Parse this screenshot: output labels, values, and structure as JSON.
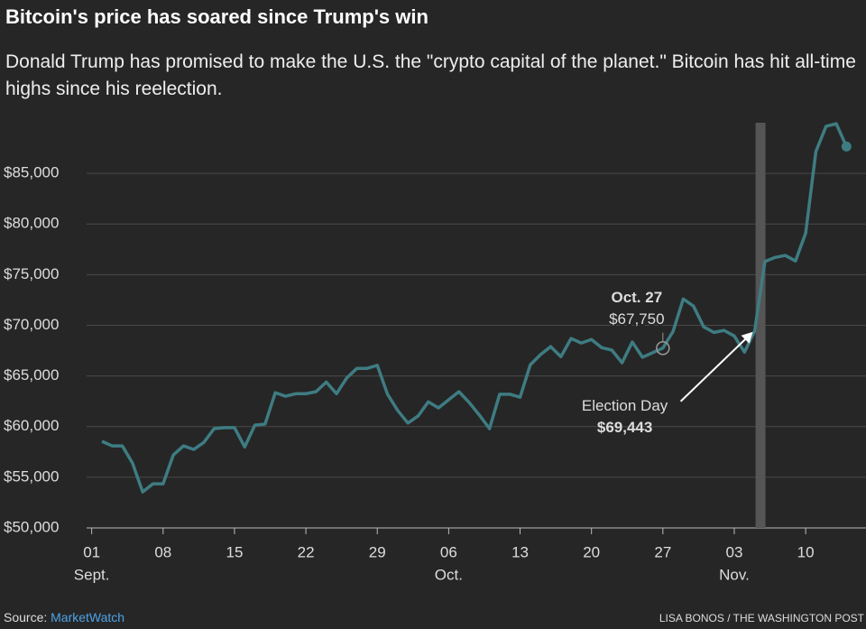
{
  "chart_data": {
    "type": "line",
    "title": "Bitcoin's price has soared since Trump's win",
    "subtitle": "Donald Trump has promised to make the U.S. the \"crypto capital of the planet.\" Bitcoin has hit all-time highs since his reelection.",
    "x": [
      2,
      3,
      4,
      5,
      6,
      7,
      8,
      9,
      10,
      11,
      12,
      13,
      14,
      15,
      16,
      17,
      18,
      19,
      20,
      21,
      22,
      23,
      24,
      25,
      26,
      27,
      28,
      29,
      30,
      31,
      32,
      33,
      34,
      35,
      36,
      37,
      38,
      39,
      40,
      41,
      42,
      43,
      44,
      45,
      46,
      47,
      48,
      49,
      50,
      51,
      52,
      53,
      54,
      55,
      56,
      57,
      58,
      59,
      60,
      61,
      62,
      63,
      64,
      65,
      66,
      67,
      68,
      69,
      70,
      71,
      72,
      73,
      74,
      75
    ],
    "series": [
      {
        "name": "Bitcoin",
        "color": "#3e7c82",
        "values": [
          58550,
          58100,
          58100,
          56400,
          53550,
          54350,
          54350,
          57200,
          58100,
          57750,
          58450,
          59800,
          59900,
          59900,
          58000,
          60150,
          60250,
          63350,
          63000,
          63250,
          63250,
          63450,
          64400,
          63250,
          64800,
          65750,
          65750,
          66050,
          63200,
          61600,
          60350,
          61050,
          62450,
          61850,
          62650,
          63450,
          62400,
          61150,
          59800,
          63200,
          63200,
          62900,
          66100,
          67100,
          67900,
          66900,
          68700,
          68250,
          68600,
          67800,
          67550,
          66300,
          68350,
          66850,
          67300,
          67750,
          69400,
          72600,
          71900,
          69850,
          69300,
          69500,
          68950,
          67350,
          69443,
          76300,
          76700,
          76900,
          76350,
          79100,
          87150,
          89650,
          89900,
          87650
        ]
      }
    ],
    "xlim": [
      0.5,
      75.5
    ],
    "xticks": [
      {
        "value": 1,
        "label": "01"
      },
      {
        "value": 8,
        "label": "08"
      },
      {
        "value": 15,
        "label": "15"
      },
      {
        "value": 22,
        "label": "22"
      },
      {
        "value": 29,
        "label": "29"
      },
      {
        "value": 36,
        "label": "06"
      },
      {
        "value": 43,
        "label": "13"
      },
      {
        "value": 50,
        "label": "20"
      },
      {
        "value": 57,
        "label": "27"
      },
      {
        "value": 64,
        "label": "03"
      },
      {
        "value": 71,
        "label": "10"
      }
    ],
    "months": [
      {
        "value": 1,
        "label": "Sept."
      },
      {
        "value": 36,
        "label": "Oct."
      },
      {
        "value": 64,
        "label": "Nov."
      }
    ],
    "ylim": [
      50000,
      90000
    ],
    "yticks": [
      {
        "value": 50000,
        "label": "$50,000"
      },
      {
        "value": 55000,
        "label": "$55,000"
      },
      {
        "value": 60000,
        "label": "$60,000"
      },
      {
        "value": 65000,
        "label": "$65,000"
      },
      {
        "value": 70000,
        "label": "$70,000"
      },
      {
        "value": 75000,
        "label": "$75,000"
      },
      {
        "value": 80000,
        "label": "$80,000"
      },
      {
        "value": 85000,
        "label": "$85,000"
      }
    ],
    "grid": true,
    "annotations": [
      {
        "x": 57,
        "y": 67750,
        "title": "Oct. 27",
        "label": "$67,750"
      },
      {
        "x": 66,
        "y": 69443,
        "title": "Election Day",
        "label": "$69,443"
      }
    ],
    "source_label": "Source:",
    "source": "MarketWatch",
    "credit": "LISA BONOS / THE WASHINGTON POST"
  }
}
